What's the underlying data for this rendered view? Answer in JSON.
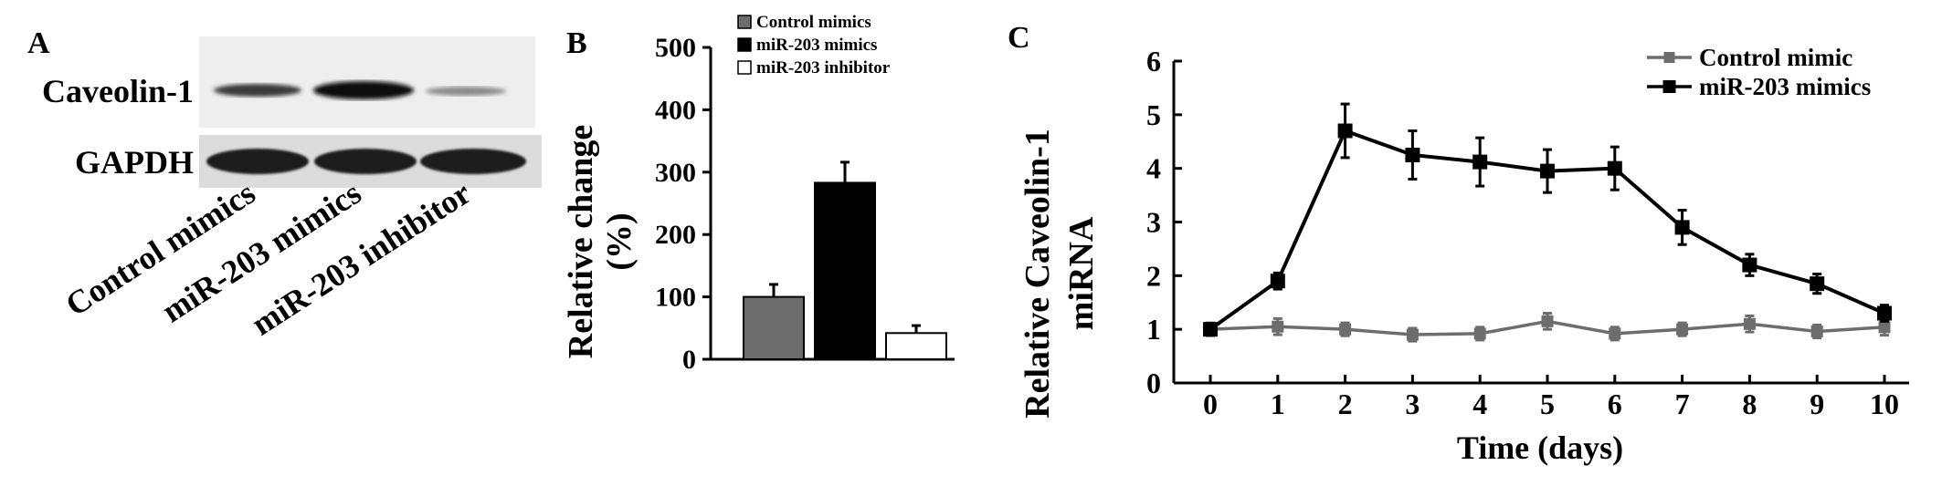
{
  "panels": {
    "A": {
      "label": "A",
      "row_labels": [
        "Caveolin-1",
        "GAPDH"
      ],
      "lane_labels": [
        "Control mimics",
        "miR-203 mimics",
        "miR-203 inhibitor"
      ]
    },
    "B": {
      "label": "B"
    },
    "C": {
      "label": "C"
    }
  },
  "chart_data": [
    {
      "type": "bar",
      "panel": "B",
      "categories": [
        "Control mimics",
        "miR-203 mimics",
        "miR-203 inhibitor"
      ],
      "values": [
        100,
        283,
        42
      ],
      "errors": [
        20,
        33,
        12
      ],
      "colors": [
        "#6d6d6d",
        "#000000",
        "#ffffff"
      ],
      "ylabel": "Relative change (%)",
      "ylabel_lines": [
        "Relative change",
        "(%)"
      ],
      "ylim": [
        0,
        500
      ],
      "yticks": [
        0,
        100,
        200,
        300,
        400,
        500
      ],
      "legend": [
        "Control mimics",
        "miR-203 mimics",
        "miR-203 inhibitor"
      ],
      "legend_position": "top-right"
    },
    {
      "type": "line",
      "panel": "C",
      "x": [
        0,
        1,
        2,
        3,
        4,
        5,
        6,
        7,
        8,
        9,
        10
      ],
      "series": [
        {
          "name": "Control mimic",
          "color": "#6d6d6d",
          "values": [
            1.0,
            1.05,
            1.0,
            0.9,
            0.92,
            1.15,
            0.92,
            1.0,
            1.1,
            0.96,
            1.04
          ],
          "errors": [
            0.12,
            0.15,
            0.12,
            0.12,
            0.12,
            0.15,
            0.12,
            0.12,
            0.15,
            0.12,
            0.15
          ]
        },
        {
          "name": "miR-203 mimics",
          "color": "#000000",
          "values": [
            1.0,
            1.9,
            4.7,
            4.25,
            4.12,
            3.95,
            4.0,
            2.9,
            2.2,
            1.85,
            1.3
          ],
          "errors": [
            0.1,
            0.15,
            0.5,
            0.45,
            0.45,
            0.4,
            0.4,
            0.32,
            0.2,
            0.18,
            0.15
          ]
        }
      ],
      "xlabel": "Time (days)",
      "ylabel": "Relative Caveolin-1 miRNA",
      "ylabel_lines": [
        "Relative Caveolin-1",
        "miRNA"
      ],
      "xlim": [
        0,
        10
      ],
      "ylim": [
        0,
        6
      ],
      "xticks": [
        0,
        1,
        2,
        3,
        4,
        5,
        6,
        7,
        8,
        9,
        10
      ],
      "yticks": [
        0,
        1,
        2,
        3,
        4,
        5,
        6
      ],
      "legend_position": "top-right"
    }
  ]
}
